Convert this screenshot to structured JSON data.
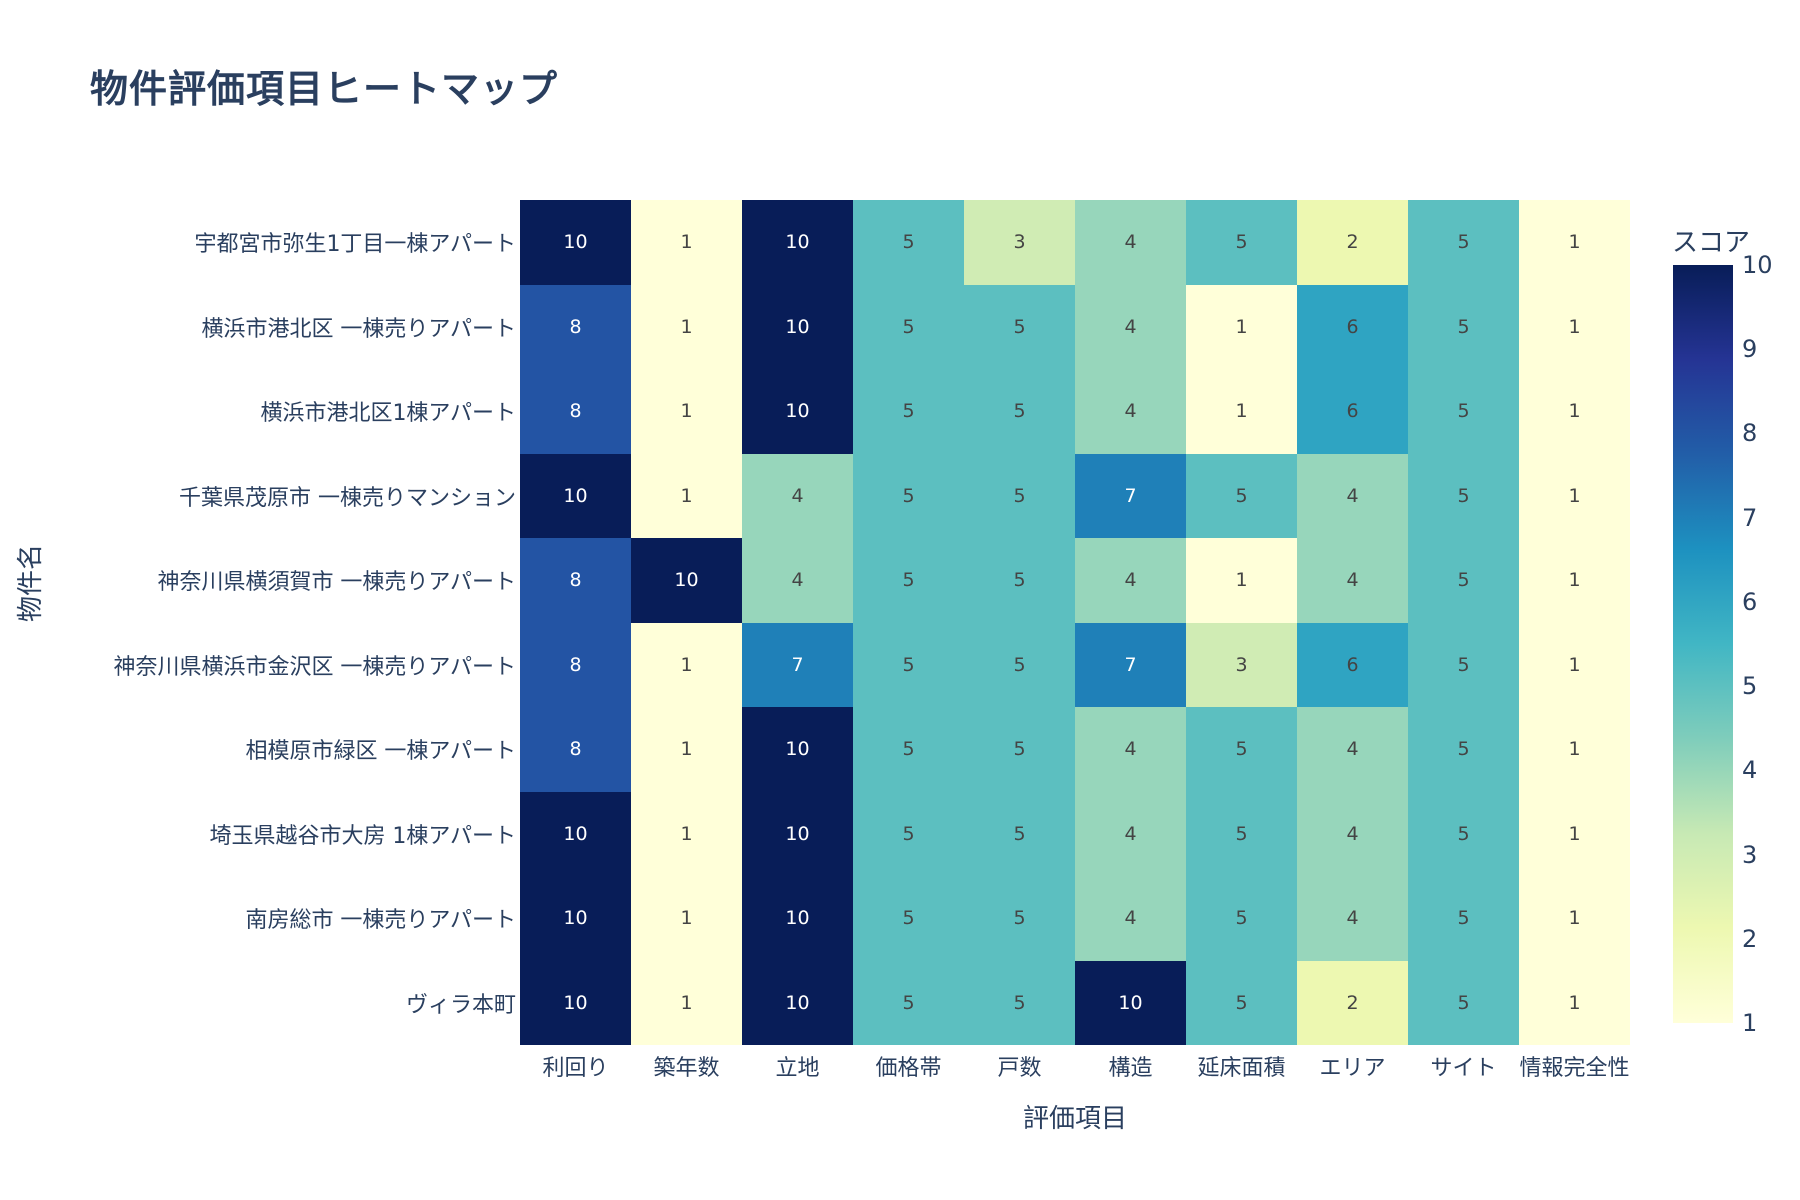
{
  "chart_data": {
    "type": "heatmap",
    "title": "物件評価項目ヒートマップ",
    "xlabel": "評価項目",
    "ylabel": "物件名",
    "x": [
      "利回り",
      "築年数",
      "立地",
      "価格帯",
      "戸数",
      "構造",
      "延床面積",
      "エリア",
      "サイト",
      "情報完全性"
    ],
    "y": [
      "宇都宮市弥生1丁目一棟アパート",
      "横浜市港北区 一棟売りアパート",
      "横浜市港北区1棟アパート",
      "千葉県茂原市 一棟売りマンション",
      "神奈川県横須賀市 一棟売りアパート",
      "神奈川県横浜市金沢区 一棟売りアパート",
      "相模原市緑区 一棟アパート",
      "埼玉県越谷市大房 1棟アパート",
      "南房総市 一棟売りアパート",
      "ヴィラ本町"
    ],
    "z": [
      [
        10,
        1,
        10,
        5,
        3,
        4,
        5,
        2,
        5,
        1
      ],
      [
        8,
        1,
        10,
        5,
        5,
        4,
        1,
        6,
        5,
        1
      ],
      [
        8,
        1,
        10,
        5,
        5,
        4,
        1,
        6,
        5,
        1
      ],
      [
        10,
        1,
        4,
        5,
        5,
        7,
        5,
        4,
        5,
        1
      ],
      [
        8,
        10,
        4,
        5,
        5,
        4,
        1,
        4,
        5,
        1
      ],
      [
        8,
        1,
        7,
        5,
        5,
        7,
        3,
        6,
        5,
        1
      ],
      [
        8,
        1,
        10,
        5,
        5,
        4,
        5,
        4,
        5,
        1
      ],
      [
        10,
        1,
        10,
        5,
        5,
        4,
        5,
        4,
        5,
        1
      ],
      [
        10,
        1,
        10,
        5,
        5,
        4,
        5,
        4,
        5,
        1
      ],
      [
        10,
        1,
        10,
        5,
        5,
        10,
        5,
        2,
        5,
        1
      ]
    ],
    "colorscale": "YlGnBu",
    "zrange": [
      1,
      10
    ],
    "colorbar": {
      "title": "スコア",
      "ticks": [
        1,
        2,
        3,
        4,
        5,
        6,
        7,
        8,
        9,
        10
      ]
    },
    "cell_text": "value",
    "grid": false
  },
  "colors": {
    "1": "#ffffd9",
    "2": "#edf8b1",
    "3": "#d0ecb4",
    "4": "#97d6bb",
    "5": "#5cbfc0",
    "6": "#2fa4c2",
    "7": "#1f80b8",
    "8": "#2354a4",
    "9": "#253494",
    "10": "#081d58",
    "text_dark": "#444444",
    "text_light": "#ffffff",
    "axis_text": "#2a3f5f"
  }
}
